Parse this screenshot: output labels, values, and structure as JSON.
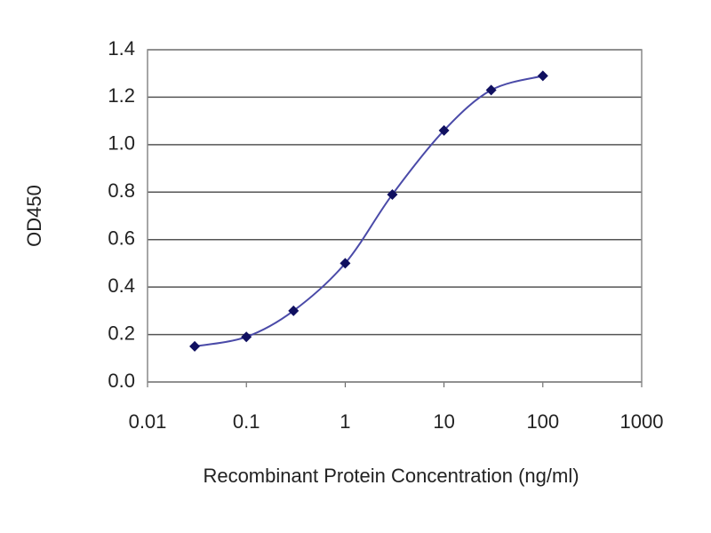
{
  "chart_data": {
    "type": "line",
    "log_x": true,
    "grid": true,
    "x_label": "Recombinant Protein Concentration (ng/ml)",
    "y_label": "OD450",
    "series": [
      {
        "color": "#4a4aa8",
        "marker_color": "#101060",
        "x": [
          0.03,
          0.1,
          0.3,
          1,
          3,
          10,
          30,
          100
        ],
        "values": [
          0.15,
          0.19,
          0.3,
          0.5,
          0.79,
          1.06,
          1.23,
          1.29
        ]
      }
    ],
    "xlim": [
      0.01,
      1000
    ],
    "xticks": [
      0.01,
      0.1,
      1,
      10,
      100,
      1000
    ],
    "ylim": [
      0,
      1.4
    ],
    "yticks": [
      {
        "value": 0,
        "label": "0.0"
      },
      0.2,
      0.4,
      0.6,
      0.8,
      {
        "value": 1,
        "label": "1.0"
      },
      1.2,
      1.4
    ]
  }
}
